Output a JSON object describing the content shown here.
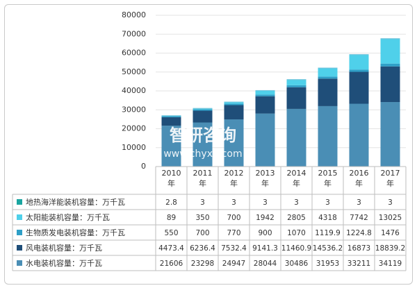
{
  "watermark": {
    "cn": "智研咨询",
    "url": "www.chyxx.com"
  },
  "chart_data": {
    "type": "bar",
    "stacked": true,
    "categories": [
      "2010年",
      "2011年",
      "2012年",
      "2013年",
      "2014年",
      "2015年",
      "2016年",
      "2017年"
    ],
    "ylim": [
      0,
      80000
    ],
    "yticks": [
      "0",
      "10000",
      "20000",
      "30000",
      "40000",
      "50000",
      "60000",
      "70000",
      "80000"
    ],
    "grid": true,
    "legend": "table-below",
    "series": [
      {
        "name": "水电装机容量：万千瓦",
        "values": [
          21606,
          23298,
          24947,
          28044,
          30486,
          31953,
          33211,
          34119
        ],
        "labels": [
          "21606",
          "23298",
          "24947",
          "28044",
          "30486",
          "31953",
          "33211",
          "34119"
        ],
        "color": "#4a8eb5"
      },
      {
        "name": "风电装机容量：万千瓦",
        "values": [
          4473.4,
          6236.4,
          7532.4,
          9141.3,
          11460.9,
          14536.2,
          16873,
          18839.2
        ],
        "labels": [
          "4473.4",
          "6236.4",
          "7532.4",
          "9141.3",
          "11460.9",
          "14536.2",
          "16873",
          "18839.2"
        ],
        "color": "#1f4e79"
      },
      {
        "name": "生物质发电装机容量：万千瓦",
        "values": [
          550,
          700,
          770,
          900,
          1070,
          1119.9,
          1224.8,
          1476
        ],
        "labels": [
          "550",
          "700",
          "770",
          "900",
          "1070",
          "1119.9",
          "1224.8",
          "1476"
        ],
        "color": "#2e9fc7"
      },
      {
        "name": "太阳能装机容量：万千瓦",
        "values": [
          89,
          350,
          700,
          1942,
          2805,
          4318,
          7742,
          13025
        ],
        "labels": [
          "89",
          "350",
          "700",
          "1942",
          "2805",
          "4318",
          "7742",
          "13025"
        ],
        "color": "#4fd0ea"
      },
      {
        "name": "地热海洋能装机容量：万千瓦",
        "values": [
          2.8,
          3,
          3,
          3,
          3,
          3,
          3,
          3
        ],
        "labels": [
          "2.8",
          "3",
          "3",
          "3",
          "3",
          "3",
          "3",
          "3"
        ],
        "color": "#1aa5a0"
      }
    ]
  }
}
